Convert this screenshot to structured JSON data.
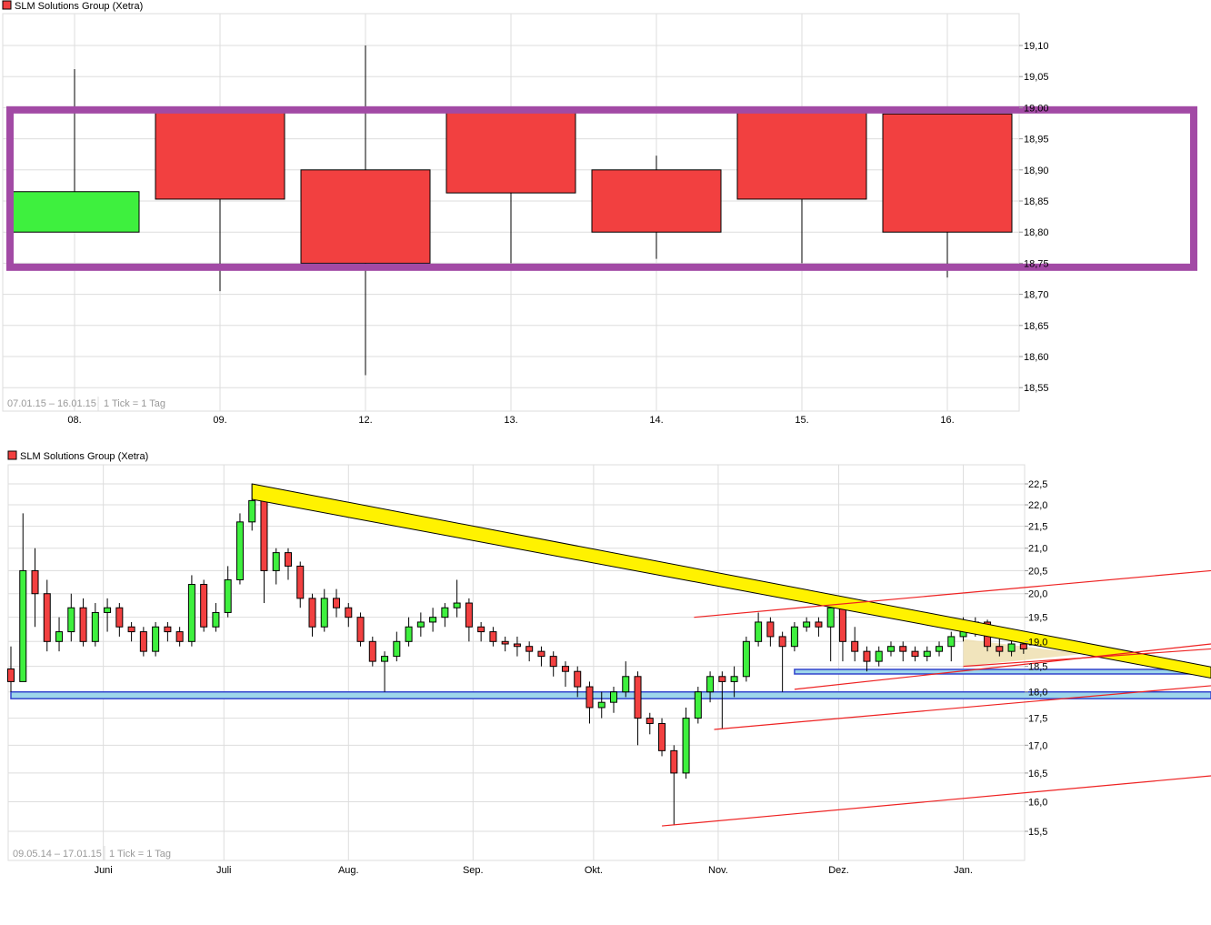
{
  "colors": {
    "up": "#3ef03e",
    "down": "#f24040",
    "grid": "#dddddd",
    "rectangle": "#a24aa5",
    "trend_band": "#fff200",
    "support_band": "#9dd6ea",
    "support_border": "#3344cc",
    "channel_line": "#ee2222",
    "triangle": "#eedfb0"
  },
  "chart_data": [
    {
      "type": "candlestick",
      "title": "SLM Solutions Group (Xetra)",
      "range_label": "07.01.15 – 16.01.15",
      "tick_label": "1 Tick = 1 Tag",
      "y_scale": "linear",
      "ylim": [
        18.53,
        19.15
      ],
      "grid": true,
      "y_ticks": [
        "18,55",
        "18,60",
        "18,65",
        "18,70",
        "18,75",
        "18,80",
        "18,85",
        "18,90",
        "18,95",
        "19,00",
        "19,05",
        "19,10"
      ],
      "categories": [
        "08.",
        "09.",
        "12.",
        "13.",
        "14.",
        "15.",
        "16."
      ],
      "ohlc": [
        [
          18.8,
          19.062,
          18.8,
          18.865
        ],
        [
          19.0,
          19.0,
          18.705,
          18.853
        ],
        [
          18.9,
          19.1,
          18.57,
          18.75
        ],
        [
          19.0,
          19.0,
          18.75,
          18.863
        ],
        [
          18.9,
          18.923,
          18.757,
          18.8
        ],
        [
          19.0,
          19.0,
          18.75,
          18.853
        ],
        [
          18.99,
          18.99,
          18.727,
          18.8
        ]
      ],
      "annotations": [
        {
          "type": "rectangle",
          "y_top": 18.995,
          "y_bottom": 18.745
        }
      ]
    },
    {
      "type": "candlestick",
      "title": "SLM Solutions Group (Xetra)",
      "range_label": "09.05.14 – 17.01.15",
      "tick_label": "1 Tick = 1 Tag",
      "y_scale": "log",
      "ylim": [
        15.2,
        22.9
      ],
      "grid": true,
      "y_ticks": [
        "15,5",
        "16,0",
        "16,5",
        "17,0",
        "17,5",
        "18,0",
        "18,5",
        "19,0",
        "19,5",
        "20,0",
        "20,5",
        "21,0",
        "21,5",
        "22,0",
        "22,5"
      ],
      "x_ticks": [
        {
          "label": "Juni",
          "date": "01.06.14"
        },
        {
          "label": "Juli",
          "date": "01.07.14"
        },
        {
          "label": "Aug.",
          "date": "01.08.14"
        },
        {
          "label": "Sep.",
          "date": "01.09.14"
        },
        {
          "label": "Okt.",
          "date": "01.10.14"
        },
        {
          "label": "Nov.",
          "date": "01.11.14"
        },
        {
          "label": "Dez.",
          "date": "01.12.14"
        },
        {
          "label": "Jan.",
          "date": "01.01.15"
        }
      ],
      "ohlc_columns": [
        "date",
        "open",
        "high",
        "low",
        "close"
      ],
      "ohlc": [
        [
          "09.05.14",
          18.45,
          18.9,
          18.0,
          18.2
        ],
        [
          "12.05.14",
          18.2,
          21.8,
          18.2,
          20.5
        ],
        [
          "15.05.14",
          20.5,
          21.0,
          19.3,
          20.0
        ],
        [
          "18.05.14",
          20.0,
          20.3,
          18.8,
          19.0
        ],
        [
          "21.05.14",
          19.0,
          19.5,
          18.8,
          19.2
        ],
        [
          "24.05.14",
          19.2,
          20.0,
          19.0,
          19.7
        ],
        [
          "27.05.14",
          19.7,
          19.9,
          18.9,
          19.0
        ],
        [
          "30.05.14",
          19.0,
          19.8,
          18.9,
          19.6
        ],
        [
          "02.06.14",
          19.6,
          19.9,
          19.2,
          19.7
        ],
        [
          "05.06.14",
          19.7,
          19.8,
          19.1,
          19.3
        ],
        [
          "08.06.14",
          19.3,
          19.4,
          19.0,
          19.2
        ],
        [
          "11.06.14",
          19.2,
          19.3,
          18.7,
          18.8
        ],
        [
          "14.06.14",
          18.8,
          19.4,
          18.7,
          19.3
        ],
        [
          "17.06.14",
          19.3,
          19.4,
          19.0,
          19.2
        ],
        [
          "20.06.14",
          19.2,
          19.3,
          18.9,
          19.0
        ],
        [
          "23.06.14",
          19.0,
          20.4,
          18.9,
          20.2
        ],
        [
          "26.06.14",
          20.2,
          20.3,
          19.2,
          19.3
        ],
        [
          "29.06.14",
          19.3,
          19.8,
          19.2,
          19.6
        ],
        [
          "02.07.14",
          19.6,
          20.6,
          19.5,
          20.3
        ],
        [
          "05.07.14",
          20.3,
          21.8,
          20.2,
          21.6
        ],
        [
          "08.07.14",
          21.6,
          22.5,
          21.4,
          22.1
        ],
        [
          "11.07.14",
          22.1,
          22.2,
          19.8,
          20.5
        ],
        [
          "14.07.14",
          20.5,
          21.0,
          20.2,
          20.9
        ],
        [
          "17.07.14",
          20.9,
          21.0,
          20.3,
          20.6
        ],
        [
          "20.07.14",
          20.6,
          20.7,
          19.7,
          19.9
        ],
        [
          "23.07.14",
          19.9,
          20.0,
          19.1,
          19.3
        ],
        [
          "26.07.14",
          19.3,
          20.1,
          19.2,
          19.9
        ],
        [
          "29.07.14",
          19.9,
          20.1,
          19.5,
          19.7
        ],
        [
          "01.08.14",
          19.7,
          19.8,
          19.3,
          19.5
        ],
        [
          "04.08.14",
          19.5,
          19.6,
          18.9,
          19.0
        ],
        [
          "07.08.14",
          19.0,
          19.1,
          18.5,
          18.6
        ],
        [
          "10.08.14",
          18.6,
          18.8,
          18.0,
          18.7
        ],
        [
          "13.08.14",
          18.7,
          19.2,
          18.6,
          19.0
        ],
        [
          "16.08.14",
          19.0,
          19.5,
          18.9,
          19.3
        ],
        [
          "19.08.14",
          19.3,
          19.6,
          19.1,
          19.4
        ],
        [
          "22.08.14",
          19.4,
          19.7,
          19.2,
          19.5
        ],
        [
          "25.08.14",
          19.5,
          19.8,
          19.3,
          19.7
        ],
        [
          "28.08.14",
          19.7,
          20.3,
          19.5,
          19.8
        ],
        [
          "31.08.14",
          19.8,
          19.9,
          19.0,
          19.3
        ],
        [
          "03.09.14",
          19.3,
          19.4,
          19.0,
          19.2
        ],
        [
          "06.09.14",
          19.2,
          19.3,
          18.9,
          19.0
        ],
        [
          "09.09.14",
          19.0,
          19.1,
          18.8,
          18.95
        ],
        [
          "12.09.14",
          18.95,
          19.1,
          18.7,
          18.9
        ],
        [
          "15.09.14",
          18.9,
          19.0,
          18.6,
          18.8
        ],
        [
          "18.09.14",
          18.8,
          18.9,
          18.5,
          18.7
        ],
        [
          "21.09.14",
          18.7,
          18.8,
          18.3,
          18.5
        ],
        [
          "24.09.14",
          18.5,
          18.6,
          18.1,
          18.4
        ],
        [
          "27.09.14",
          18.4,
          18.5,
          17.9,
          18.1
        ],
        [
          "30.09.14",
          18.1,
          18.2,
          17.4,
          17.7
        ],
        [
          "03.10.14",
          17.7,
          18.0,
          17.5,
          17.8
        ],
        [
          "06.10.14",
          17.8,
          18.1,
          17.6,
          18.0
        ],
        [
          "09.10.14",
          18.0,
          18.6,
          17.9,
          18.3
        ],
        [
          "12.10.14",
          18.3,
          18.4,
          17.0,
          17.5
        ],
        [
          "15.10.14",
          17.5,
          17.6,
          17.2,
          17.4
        ],
        [
          "18.10.14",
          17.4,
          17.5,
          16.8,
          16.9
        ],
        [
          "21.10.14",
          16.9,
          17.0,
          15.6,
          16.5
        ],
        [
          "24.10.14",
          16.5,
          17.7,
          16.4,
          17.5
        ],
        [
          "27.10.14",
          17.5,
          18.1,
          17.4,
          18.0
        ],
        [
          "30.10.14",
          18.0,
          18.4,
          17.8,
          18.3
        ],
        [
          "02.11.14",
          18.3,
          18.4,
          17.3,
          18.2
        ],
        [
          "05.11.14",
          18.2,
          18.5,
          17.9,
          18.3
        ],
        [
          "08.11.14",
          18.3,
          19.1,
          18.2,
          19.0
        ],
        [
          "11.11.14",
          19.0,
          19.6,
          18.9,
          19.4
        ],
        [
          "14.11.14",
          19.4,
          19.5,
          18.9,
          19.1
        ],
        [
          "17.11.14",
          19.1,
          19.2,
          18.0,
          18.9
        ],
        [
          "20.11.14",
          18.9,
          19.4,
          18.8,
          19.3
        ],
        [
          "23.11.14",
          19.3,
          19.5,
          19.2,
          19.4
        ],
        [
          "26.11.14",
          19.4,
          19.5,
          19.1,
          19.3
        ],
        [
          "29.11.14",
          19.3,
          19.8,
          18.6,
          19.7
        ],
        [
          "02.12.14",
          19.7,
          19.75,
          18.6,
          19.0
        ],
        [
          "05.12.14",
          19.0,
          19.3,
          18.6,
          18.8
        ],
        [
          "08.12.14",
          18.8,
          18.9,
          18.4,
          18.6
        ],
        [
          "11.12.14",
          18.6,
          18.9,
          18.5,
          18.8
        ],
        [
          "14.12.14",
          18.8,
          19.0,
          18.7,
          18.9
        ],
        [
          "17.12.14",
          18.9,
          19.0,
          18.6,
          18.8
        ],
        [
          "20.12.14",
          18.8,
          18.9,
          18.6,
          18.7
        ],
        [
          "23.12.14",
          18.7,
          18.9,
          18.6,
          18.8
        ],
        [
          "26.12.14",
          18.8,
          19.0,
          18.7,
          18.9
        ],
        [
          "29.12.14",
          18.9,
          19.2,
          18.6,
          19.1
        ],
        [
          "01.01.15",
          19.1,
          19.5,
          19.0,
          19.3
        ],
        [
          "04.01.15",
          19.3,
          19.5,
          19.1,
          19.4
        ],
        [
          "07.01.15",
          19.4,
          19.45,
          18.8,
          18.9
        ],
        [
          "10.01.15",
          18.9,
          19.1,
          18.7,
          18.8
        ],
        [
          "13.01.15",
          18.8,
          19.1,
          18.7,
          18.95
        ],
        [
          "16.01.15",
          18.95,
          19.0,
          18.75,
          18.85
        ]
      ],
      "annotations": {
        "trend_band": {
          "from": [
            "08.07.14",
            22.5,
            22.13
          ],
          "to": [
            "04.03.15",
            18.49,
            18.27
          ]
        },
        "support_bands": [
          {
            "from": "09.05.14",
            "to": "04.03.15",
            "top": 18.0,
            "bottom": 17.87
          },
          {
            "from": "20.11.14",
            "to": "04.03.15",
            "top": 18.44,
            "bottom": 18.35
          }
        ],
        "channel_lines": [
          [
            [
              "26.10.14",
              19.5
            ],
            [
              "04.03.15",
              20.5
            ]
          ],
          [
            [
              "20.11.14",
              18.05
            ],
            [
              "04.03.15",
              18.95
            ]
          ],
          [
            [
              "01.01.15",
              18.5
            ],
            [
              "04.03.15",
              18.85
            ]
          ],
          [
            [
              "31.10.14",
              17.29
            ],
            [
              "04.03.15",
              18.12
            ]
          ],
          [
            [
              "18.10.14",
              15.59
            ],
            [
              "04.03.15",
              16.45
            ]
          ]
        ],
        "triangle": [
          [
            "01.01.15",
            19.05
          ],
          [
            "01.01.15",
            18.5
          ],
          [
            "31.01.15",
            18.75
          ]
        ]
      }
    }
  ]
}
